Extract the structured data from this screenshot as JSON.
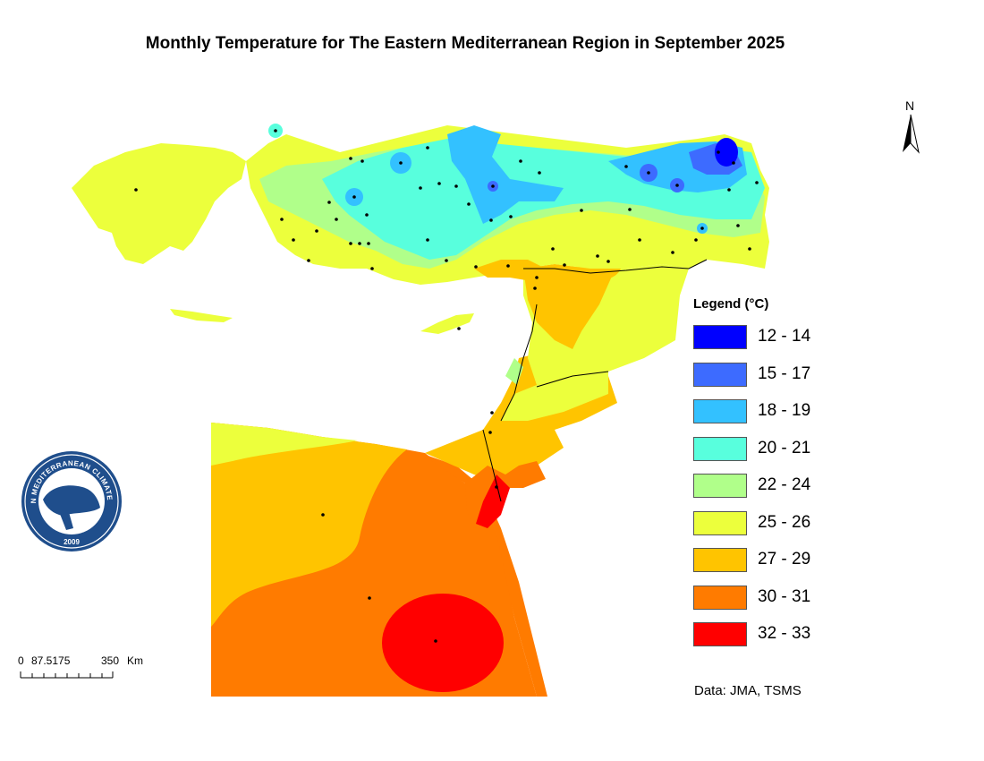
{
  "title": "Monthly Temperature for The Eastern Mediterranean Region in September 2025",
  "north_arrow": {
    "label": "N",
    "icon": "north-arrow-icon"
  },
  "legend": {
    "title": "Legend (°C)",
    "items": [
      {
        "label": "12 - 14",
        "color": "#0000ff"
      },
      {
        "label": "15 - 17",
        "color": "#3d6bff"
      },
      {
        "label": "18 - 19",
        "color": "#33c1ff"
      },
      {
        "label": "20 - 21",
        "color": "#58ffdd"
      },
      {
        "label": "22 - 24",
        "color": "#b0ff8a"
      },
      {
        "label": "25 - 26",
        "color": "#ecff3c"
      },
      {
        "label": "27 - 29",
        "color": "#ffc400"
      },
      {
        "label": "30 - 31",
        "color": "#ff7b00"
      },
      {
        "label": "32 - 33",
        "color": "#ff0000"
      }
    ]
  },
  "data_source": "Data: JMA, TSMS",
  "scale_bar": {
    "labels": [
      "0",
      "87.5175",
      "350",
      "Km"
    ]
  },
  "logo": {
    "text_top": "EASTERN MEDITERRANEAN CLIMATE CENTRE",
    "year": "2009"
  }
}
